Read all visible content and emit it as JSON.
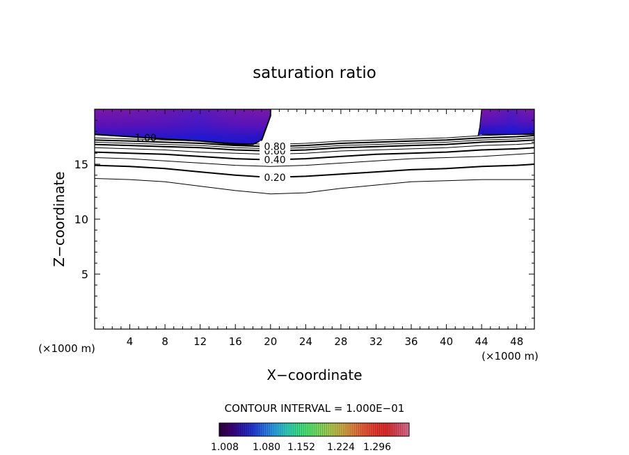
{
  "chart_data": {
    "type": "contour",
    "title": "saturation ratio",
    "xlabel": "X−coordinate",
    "ylabel": "Z−coordinate",
    "x_unit_left": "(×1000 m)",
    "x_unit_right": "(×1000 m)",
    "xlim": [
      0,
      50
    ],
    "ylim": [
      0,
      20
    ],
    "x_ticks": [
      {
        "v": 4,
        "label": "4"
      },
      {
        "v": 8,
        "label": "8"
      },
      {
        "v": 12,
        "label": "12"
      },
      {
        "v": 16,
        "label": "16"
      },
      {
        "v": 20,
        "label": "20"
      },
      {
        "v": 24,
        "label": "24"
      },
      {
        "v": 28,
        "label": "28"
      },
      {
        "v": 32,
        "label": "32"
      },
      {
        "v": 36,
        "label": "36"
      },
      {
        "v": 40,
        "label": "40"
      },
      {
        "v": 44,
        "label": "44"
      },
      {
        "v": 48,
        "label": "48"
      }
    ],
    "y_ticks": [
      {
        "v": 5,
        "label": "5"
      },
      {
        "v": 10,
        "label": "10"
      },
      {
        "v": 15,
        "label": "15"
      }
    ],
    "contour_interval_text": "CONTOUR INTERVAL = 1.000E−01",
    "contours": [
      {
        "level": 0.1,
        "label": "",
        "x": [
          0,
          4,
          8,
          12,
          16,
          20,
          24,
          28,
          32,
          36,
          40,
          44,
          48,
          50
        ],
        "z": [
          13.7,
          13.6,
          13.4,
          13.0,
          12.6,
          12.3,
          12.4,
          12.8,
          13.1,
          13.4,
          13.5,
          13.6,
          13.6,
          13.6
        ]
      },
      {
        "level": 0.2,
        "label": "0.20",
        "x": [
          0,
          4,
          8,
          12,
          16,
          20,
          24,
          28,
          32,
          36,
          40,
          44,
          48,
          50
        ],
        "z": [
          14.9,
          14.8,
          14.6,
          14.3,
          14.0,
          13.8,
          13.9,
          14.1,
          14.3,
          14.5,
          14.6,
          14.8,
          14.9,
          15.0
        ]
      },
      {
        "level": 0.3,
        "label": "",
        "x": [
          0,
          4,
          8,
          12,
          16,
          20,
          24,
          28,
          32,
          36,
          40,
          44,
          48,
          50
        ],
        "z": [
          15.6,
          15.5,
          15.3,
          15.1,
          14.9,
          14.8,
          14.9,
          15.1,
          15.3,
          15.5,
          15.6,
          15.7,
          15.9,
          16.0
        ]
      },
      {
        "level": 0.4,
        "label": "0.40",
        "x": [
          0,
          4,
          8,
          12,
          16,
          20,
          24,
          28,
          32,
          36,
          40,
          44,
          48,
          50
        ],
        "z": [
          16.1,
          16.0,
          15.9,
          15.7,
          15.5,
          15.4,
          15.5,
          15.7,
          15.9,
          16.0,
          16.1,
          16.3,
          16.4,
          16.5
        ]
      },
      {
        "level": 0.5,
        "label": "",
        "x": [
          0,
          4,
          8,
          12,
          16,
          20,
          24,
          28,
          32,
          36,
          40,
          44,
          48,
          50
        ],
        "z": [
          16.5,
          16.4,
          16.3,
          16.1,
          16.0,
          15.9,
          16.0,
          16.2,
          16.3,
          16.4,
          16.5,
          16.7,
          16.8,
          16.9
        ]
      },
      {
        "level": 0.6,
        "label": "0.60",
        "x": [
          0,
          4,
          8,
          12,
          16,
          20,
          24,
          28,
          32,
          36,
          40,
          44,
          48,
          50
        ],
        "z": [
          16.8,
          16.7,
          16.6,
          16.5,
          16.3,
          16.2,
          16.3,
          16.5,
          16.6,
          16.7,
          16.8,
          17.0,
          17.1,
          17.2
        ]
      },
      {
        "level": 0.7,
        "label": "",
        "x": [
          0,
          4,
          8,
          12,
          16,
          20,
          24,
          28,
          32,
          36,
          40,
          44,
          48,
          50
        ],
        "z": [
          17.0,
          16.9,
          16.8,
          16.7,
          16.5,
          16.4,
          16.5,
          16.7,
          16.8,
          16.9,
          17.0,
          17.2,
          17.3,
          17.4
        ]
      },
      {
        "level": 0.8,
        "label": "0.80",
        "x": [
          0,
          4,
          8,
          12,
          16,
          20,
          24,
          28,
          32,
          36,
          40,
          44,
          48,
          50
        ],
        "z": [
          17.2,
          17.1,
          17.0,
          16.9,
          16.7,
          16.6,
          16.7,
          16.9,
          17.0,
          17.1,
          17.2,
          17.4,
          17.5,
          17.6
        ]
      },
      {
        "level": 0.9,
        "label": "",
        "x": [
          0,
          4,
          8,
          12,
          16,
          20,
          24,
          28,
          32,
          36,
          40,
          44,
          48,
          50
        ],
        "z": [
          17.4,
          17.3,
          17.2,
          17.1,
          16.9,
          16.8,
          16.9,
          17.1,
          17.2,
          17.3,
          17.4,
          17.6,
          17.7,
          17.8
        ]
      },
      {
        "level": 1.0,
        "label": "1.00",
        "x": [
          0,
          4,
          8,
          12,
          16,
          18,
          19,
          19.6,
          20,
          20
        ],
        "z": [
          17.7,
          17.5,
          17.3,
          17.1,
          16.8,
          16.8,
          17.2,
          18.5,
          19.4,
          20
        ]
      }
    ],
    "filled_regions": [
      {
        "region": "supersaturated-left",
        "x": [
          0,
          4,
          8,
          12,
          16,
          18,
          19,
          19.6,
          20,
          20,
          0
        ],
        "z": [
          17.7,
          17.5,
          17.3,
          17.1,
          16.8,
          16.8,
          17.2,
          18.5,
          19.4,
          20,
          20
        ]
      },
      {
        "region": "supersaturated-right",
        "x": [
          43.6,
          43.8,
          44,
          50,
          50,
          44
        ],
        "z": [
          17.6,
          18.4,
          20,
          20,
          17.7,
          17.7
        ]
      }
    ],
    "colorbar": {
      "min": 1.0,
      "max": 1.33,
      "colors": [
        "#2a003c",
        "#3a0070",
        "#2a1aa8",
        "#1f3ad0",
        "#2a6fe0",
        "#2aa0d8",
        "#2cc7b8",
        "#3ad68a",
        "#4ee06a",
        "#7ad45a",
        "#a8c44e",
        "#c8a846",
        "#d8803e",
        "#e05a36",
        "#e03a30",
        "#d82a2a",
        "#d04a5a",
        "#d86a8a"
      ],
      "tick_labels": [
        "1.008",
        "1.080",
        "1.152",
        "1.224",
        "1.296"
      ]
    }
  }
}
